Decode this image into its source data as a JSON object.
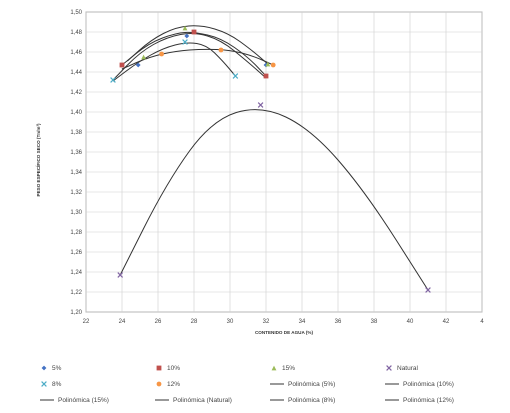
{
  "chart_data": {
    "type": "scatter",
    "xlabel": "CONTENIDO DE AGUA (%)",
    "ylabel": "PESO ESPECÍFICO SECO (Tn/m³)",
    "xlim": [
      22,
      44
    ],
    "ylim": [
      1.2,
      1.5
    ],
    "x_ticks": [
      "22",
      "24",
      "26",
      "28",
      "30",
      "32",
      "34",
      "36",
      "38",
      "40",
      "42",
      "4"
    ],
    "y_ticks": [
      "1,20",
      "1,22",
      "1,24",
      "1,26",
      "1,28",
      "1,30",
      "1,32",
      "1,34",
      "1,36",
      "1,38",
      "1,40",
      "1,42",
      "1,44",
      "1,46",
      "1,48",
      "1,50"
    ],
    "grid": true,
    "legend_position": "bottom",
    "series": [
      {
        "name": "5%",
        "marker": "diamond",
        "color": "#4472c4",
        "points": [
          [
            24.9,
            1.447
          ],
          [
            27.6,
            1.476
          ],
          [
            32.0,
            1.447
          ]
        ],
        "trend": [
          1.432,
          1.46,
          1.475,
          1.48,
          1.472,
          1.45,
          1.434
        ]
      },
      {
        "name": "10%",
        "marker": "square",
        "color": "#c0504d",
        "points": [
          [
            24.0,
            1.447
          ],
          [
            28.0,
            1.48
          ],
          [
            32.0,
            1.436
          ]
        ],
        "trend": [
          1.447,
          1.469,
          1.479,
          1.48,
          1.474,
          1.455,
          1.436
        ]
      },
      {
        "name": "15%",
        "marker": "triangle",
        "color": "#9bbb59",
        "points": [
          [
            25.2,
            1.455
          ],
          [
            27.5,
            1.484
          ],
          [
            32.1,
            1.448
          ]
        ],
        "trend": [
          1.451,
          1.472,
          1.485,
          1.487,
          1.479,
          1.462,
          1.448
        ]
      },
      {
        "name": "Natural",
        "marker": "x",
        "color": "#8064a2",
        "points": [
          [
            23.9,
            1.237
          ],
          [
            31.7,
            1.407
          ],
          [
            41.0,
            1.222
          ]
        ],
        "trend": [
          1.237,
          1.33,
          1.392,
          1.407,
          1.383,
          1.321,
          1.222
        ]
      },
      {
        "name": "8%",
        "marker": "x",
        "color": "#4bacc6",
        "points": [
          [
            23.5,
            1.432
          ],
          [
            27.5,
            1.47
          ],
          [
            30.3,
            1.436
          ]
        ],
        "trend": [
          1.431,
          1.45,
          1.464,
          1.47,
          1.467,
          1.451,
          1.436
        ]
      },
      {
        "name": "12%",
        "marker": "circle",
        "color": "#f79646",
        "points": [
          [
            26.2,
            1.458
          ],
          [
            29.5,
            1.462
          ],
          [
            32.4,
            1.447
          ]
        ],
        "trend": [
          1.443,
          1.455,
          1.461,
          1.463,
          1.462,
          1.456,
          1.447
        ]
      }
    ],
    "trend_x": {
      "5%": [
        23.5,
        25.0,
        26.5,
        28.0,
        29.5,
        31.0,
        32.0
      ],
      "10%": [
        24.0,
        25.5,
        27.0,
        28.0,
        29.5,
        31.0,
        32.0
      ],
      "15%": [
        24.3,
        25.6,
        27.0,
        28.4,
        29.9,
        31.2,
        32.1
      ],
      "Natural": [
        23.9,
        26.5,
        29.0,
        31.7,
        34.5,
        37.5,
        41.0
      ],
      "8%": [
        23.5,
        24.9,
        26.3,
        27.6,
        28.7,
        29.6,
        30.3
      ],
      "12%": [
        24.0,
        25.5,
        27.0,
        28.5,
        30.0,
        31.3,
        32.4
      ]
    }
  },
  "legend": {
    "items": [
      {
        "label": "5%",
        "kind": "marker",
        "marker": "diamond",
        "color": "#4472c4"
      },
      {
        "label": "10%",
        "kind": "marker",
        "marker": "square",
        "color": "#c0504d"
      },
      {
        "label": "15%",
        "kind": "marker",
        "marker": "triangle",
        "color": "#9bbb59"
      },
      {
        "label": "Natural",
        "kind": "marker",
        "marker": "x",
        "color": "#8064a2"
      },
      {
        "label": "8%",
        "kind": "marker",
        "marker": "x",
        "color": "#4bacc6"
      },
      {
        "label": "12%",
        "kind": "marker",
        "marker": "circle",
        "color": "#f79646"
      },
      {
        "label": "Polinómica (5%)",
        "kind": "line",
        "color": "#333333"
      },
      {
        "label": "Polinómica (10%)",
        "kind": "line",
        "color": "#333333"
      },
      {
        "label": "Polinómica (15%)",
        "kind": "line",
        "color": "#333333"
      },
      {
        "label": "Polinómica (Natural)",
        "kind": "line",
        "color": "#333333"
      },
      {
        "label": "Polinómica (8%)",
        "kind": "line",
        "color": "#333333"
      },
      {
        "label": "Polinómica (12%)",
        "kind": "line",
        "color": "#333333"
      }
    ]
  }
}
